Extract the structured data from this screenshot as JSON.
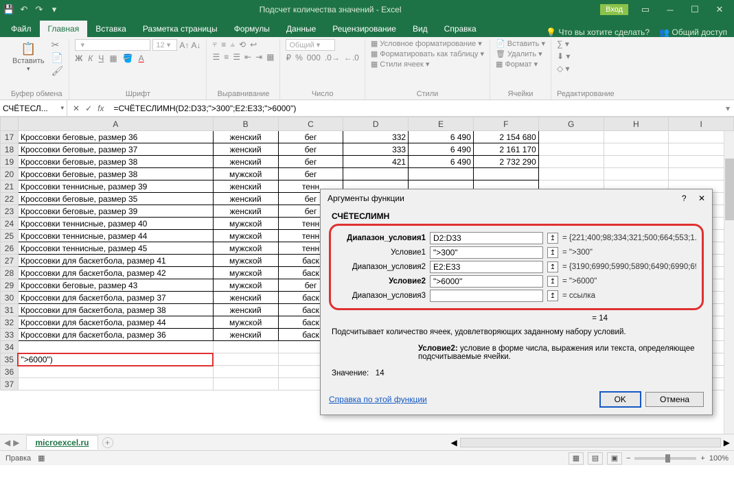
{
  "titlebar": {
    "title": "Подсчет количества значений  -  Excel",
    "signin": "Вход"
  },
  "tabs": {
    "file": "Файл",
    "home": "Главная",
    "insert": "Вставка",
    "layout": "Разметка страницы",
    "formulas": "Формулы",
    "data": "Данные",
    "review": "Рецензирование",
    "view": "Вид",
    "help": "Справка",
    "tellme": "Что вы хотите сделать?",
    "share": "Общий доступ"
  },
  "ribbon": {
    "paste": "Вставить",
    "clipboard": "Буфер обмена",
    "font": "Шрифт",
    "font_size": "12",
    "alignment": "Выравнивание",
    "number": "Число",
    "number_format": "Общий",
    "styles": "Стили",
    "cond_format": "Условное форматирование",
    "format_table": "Форматировать как таблицу",
    "cell_styles": "Стили ячеек",
    "cells": "Ячейки",
    "insert_btn": "Вставить",
    "delete_btn": "Удалить",
    "format_btn": "Формат",
    "editing": "Редактирование"
  },
  "formula": {
    "namebox": "СЧЁТЕСЛ...",
    "value": "=СЧЁТЕСЛИМН(D2:D33;\">300\";E2:E33;\">6000\")"
  },
  "columns": [
    "A",
    "B",
    "C",
    "D",
    "E",
    "F",
    "G",
    "H",
    "I"
  ],
  "rows": [
    {
      "n": 17,
      "a": "Кроссовки беговые, размер 36",
      "b": "женский",
      "c": "бег",
      "d": "332",
      "e": "6 490",
      "f": "2 154 680"
    },
    {
      "n": 18,
      "a": "Кроссовки беговые, размер 37",
      "b": "женский",
      "c": "бег",
      "d": "333",
      "e": "6 490",
      "f": "2 161 170"
    },
    {
      "n": 19,
      "a": "Кроссовки беговые, размер 38",
      "b": "женский",
      "c": "бег",
      "d": "421",
      "e": "6 490",
      "f": "2 732 290"
    },
    {
      "n": 20,
      "a": "Кроссовки беговые, размер 38",
      "b": "мужской",
      "c": "бег",
      "d": "",
      "e": "",
      "f": ""
    },
    {
      "n": 21,
      "a": "Кроссовки теннисные, размер 39",
      "b": "женский",
      "c": "тенн",
      "d": "",
      "e": "",
      "f": ""
    },
    {
      "n": 22,
      "a": "Кроссовки беговые, размер 35",
      "b": "женский",
      "c": "бег",
      "d": "",
      "e": "",
      "f": ""
    },
    {
      "n": 23,
      "a": "Кроссовки беговые, размер 39",
      "b": "женский",
      "c": "бег",
      "d": "",
      "e": "",
      "f": ""
    },
    {
      "n": 24,
      "a": "Кроссовки теннисные, размер 40",
      "b": "мужской",
      "c": "тенн",
      "d": "",
      "e": "",
      "f": ""
    },
    {
      "n": 25,
      "a": "Кроссовки теннисные, размер 44",
      "b": "мужской",
      "c": "тенн",
      "d": "",
      "e": "",
      "f": ""
    },
    {
      "n": 26,
      "a": "Кроссовки теннисные, размер 45",
      "b": "мужской",
      "c": "тенн",
      "d": "",
      "e": "",
      "f": ""
    },
    {
      "n": 27,
      "a": "Кроссовки для баскетбола, размер 41",
      "b": "мужской",
      "c": "баск",
      "d": "",
      "e": "",
      "f": ""
    },
    {
      "n": 28,
      "a": "Кроссовки для баскетбола, размер 42",
      "b": "мужской",
      "c": "баск",
      "d": "",
      "e": "",
      "f": ""
    },
    {
      "n": 29,
      "a": "Кроссовки беговые, размер 43",
      "b": "мужской",
      "c": "бег",
      "d": "",
      "e": "",
      "f": ""
    },
    {
      "n": 30,
      "a": "Кроссовки для баскетбола, размер 37",
      "b": "женский",
      "c": "баск",
      "d": "",
      "e": "",
      "f": ""
    },
    {
      "n": 31,
      "a": "Кроссовки для баскетбола, размер 38",
      "b": "женский",
      "c": "баск",
      "d": "",
      "e": "",
      "f": ""
    },
    {
      "n": 32,
      "a": "Кроссовки для баскетбола, размер 44",
      "b": "мужской",
      "c": "баск",
      "d": "",
      "e": "",
      "f": ""
    },
    {
      "n": 33,
      "a": "Кроссовки для баскетбола, размер 36",
      "b": "женский",
      "c": "баск",
      "d": "",
      "e": "",
      "f": ""
    },
    {
      "n": 34,
      "a": "",
      "b": "",
      "c": "",
      "d": "",
      "e": "",
      "f": ""
    },
    {
      "n": 35,
      "a": "\">6000\")",
      "b": "",
      "c": "",
      "d": "",
      "e": "",
      "f": "",
      "edit": true
    },
    {
      "n": 36,
      "a": "",
      "b": "",
      "c": "",
      "d": "",
      "e": "",
      "f": ""
    },
    {
      "n": 37,
      "a": "",
      "b": "",
      "c": "",
      "d": "",
      "e": "",
      "f": ""
    }
  ],
  "dialog": {
    "title": "Аргументы функции",
    "func": "СЧЁТЕСЛИМН",
    "args": [
      {
        "label": "Диапазон_условия1",
        "bold": true,
        "value": "D2:D33",
        "result": "= {221;400;98;334;321;500;664;553;1..."
      },
      {
        "label": "Условие1",
        "bold": false,
        "value": "\">300\"",
        "result": "= \">300\""
      },
      {
        "label": "Диапазон_условия2",
        "bold": false,
        "value": "E2:E33",
        "result": "= {3190;6990;5990;5890;6490;6990;699"
      },
      {
        "label": "Условие2",
        "bold": true,
        "value": "\">6000\"",
        "result": "= \">6000\""
      },
      {
        "label": "Диапазон_условия3",
        "bold": false,
        "value": "",
        "result": "= ссылка"
      }
    ],
    "equals_result": "= 14",
    "desc": "Подсчитывает количество ячеек, удовлетворяющих заданному набору условий.",
    "arg_desc_label": "Условие2:",
    "arg_desc_text": "условие в форме числа, выражения или текста, определяющее подсчитываемые ячейки.",
    "value_label": "Значение:",
    "value_result": "14",
    "help": "Справка по этой функции",
    "ok": "OK",
    "cancel": "Отмена"
  },
  "sheet": {
    "name": "microexcel.ru"
  },
  "status": {
    "mode": "Правка",
    "zoom": "100%"
  }
}
